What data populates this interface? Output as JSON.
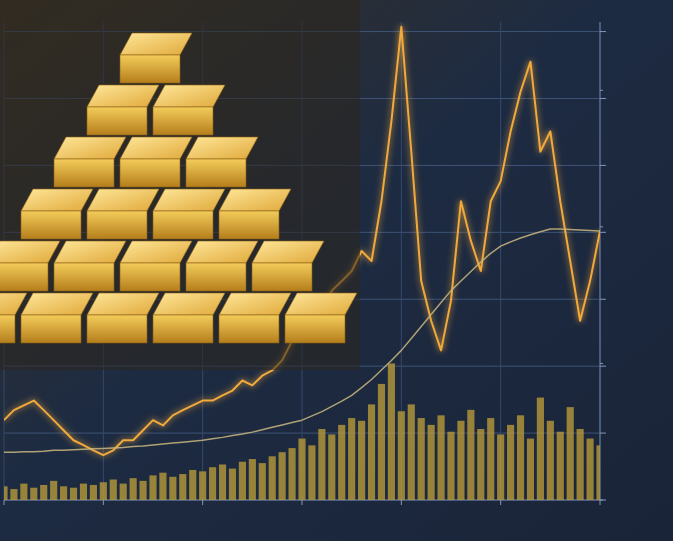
{
  "chart_data": {
    "type": "line",
    "x": [
      0,
      1,
      2,
      3,
      4,
      5,
      6,
      7,
      8,
      9,
      10,
      11,
      12,
      13,
      14,
      15,
      16,
      17,
      18,
      19,
      20,
      21,
      22,
      23,
      24,
      25,
      26,
      27,
      28,
      29,
      30,
      31,
      32,
      33,
      34,
      35,
      36,
      37,
      38,
      39,
      40,
      41,
      42,
      43,
      44,
      45,
      46,
      47,
      48,
      49,
      50,
      51,
      52,
      53,
      54,
      55,
      56,
      57,
      58,
      59,
      60
    ],
    "xlim": [
      0,
      60
    ],
    "xticks": [
      0,
      10,
      20,
      30,
      40,
      50,
      60
    ],
    "ylim": [
      0,
      100
    ],
    "yticks": [
      0,
      14,
      28,
      42,
      56,
      70,
      84,
      98
    ],
    "y2lim": [
      0,
      350
    ],
    "y2ticks": [
      0,
      100,
      200,
      300
    ],
    "grid": true,
    "tick_labels": false,
    "series": [
      {
        "type": "line",
        "color": "#f2a93b",
        "values": [
          16.7,
          18.8,
          19.8,
          20.8,
          18.8,
          16.7,
          14.6,
          12.5,
          11.5,
          10.4,
          9.4,
          10.4,
          12.5,
          12.5,
          14.6,
          16.7,
          15.6,
          17.7,
          18.8,
          19.8,
          20.8,
          20.8,
          21.9,
          22.9,
          25,
          24,
          26,
          27.1,
          29.2,
          33.3,
          35.4,
          41.7,
          39.6,
          43.8,
          45.8,
          47.9,
          52.1,
          50,
          62.5,
          79.2,
          99,
          72.9,
          45.8,
          37.5,
          31.3,
          41.7,
          62.5,
          54.2,
          47.9,
          62.5,
          66.7,
          77.1,
          85.4,
          91.7,
          72.9,
          77.1,
          62.5,
          50,
          37.5,
          45.8,
          56.3
        ]
      },
      {
        "type": "line",
        "color": "#c9b77e",
        "values": [
          10,
          10,
          10.1,
          10.1,
          10.2,
          10.4,
          10.4,
          10.5,
          10.6,
          10.7,
          10.8,
          10.9,
          11,
          11.2,
          11.3,
          11.5,
          11.7,
          11.9,
          12.1,
          12.3,
          12.5,
          12.8,
          13.1,
          13.5,
          13.8,
          14.2,
          14.7,
          15.2,
          15.7,
          16.2,
          16.7,
          17.6,
          18.5,
          19.6,
          20.7,
          21.9,
          23.5,
          25.2,
          27.2,
          29.2,
          31.3,
          33.8,
          36.3,
          38.8,
          41.3,
          43.8,
          45.8,
          47.8,
          49.8,
          51.6,
          53.1,
          54,
          54.8,
          55.5,
          56.1,
          56.7,
          56.7,
          56.6,
          56.5,
          56.4,
          56.3
        ]
      },
      {
        "type": "bar",
        "axis": "y2",
        "color": "#b89a3a",
        "values": [
          10,
          8,
          12,
          9,
          11,
          14,
          10,
          9,
          12,
          11,
          13,
          15,
          12,
          16,
          14,
          18,
          20,
          17,
          19,
          22,
          21,
          24,
          26,
          23,
          28,
          30,
          27,
          32,
          35,
          38,
          45,
          40,
          52,
          48,
          55,
          60,
          58,
          70,
          85,
          100,
          65,
          70,
          60,
          55,
          62,
          50,
          58,
          66,
          52,
          60,
          48,
          55,
          62,
          45,
          75,
          58,
          50,
          68,
          52,
          45,
          40
        ]
      }
    ]
  }
}
